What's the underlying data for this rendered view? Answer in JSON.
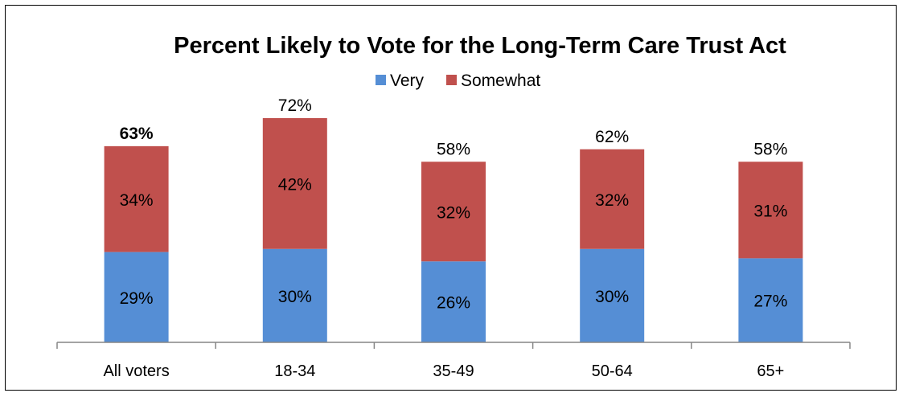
{
  "chart_data": {
    "type": "bar",
    "stacked": true,
    "title": "Percent Likely to Vote for the Long-Term Care Trust Act",
    "xlabel": "",
    "ylabel": "",
    "ylim": [
      0,
      80
    ],
    "grid": false,
    "legend_position": "top",
    "categories": [
      "All voters",
      "18-34",
      "35-49",
      "50-64",
      "65+"
    ],
    "series": [
      {
        "name": "Very",
        "color": "#558ED5",
        "values": [
          29,
          30,
          26,
          30,
          27
        ],
        "labels": [
          "29%",
          "30%",
          "26%",
          "30%",
          "27%"
        ]
      },
      {
        "name": "Somewhat",
        "color": "#C0504D",
        "values": [
          34,
          42,
          32,
          32,
          31
        ],
        "labels": [
          "34%",
          "42%",
          "32%",
          "32%",
          "31%"
        ]
      }
    ],
    "totals": [
      63,
      72,
      58,
      62,
      58
    ],
    "total_labels": [
      "63%",
      "72%",
      "58%",
      "62%",
      "58%"
    ],
    "total_label_bold": [
      true,
      false,
      false,
      false,
      false
    ]
  }
}
